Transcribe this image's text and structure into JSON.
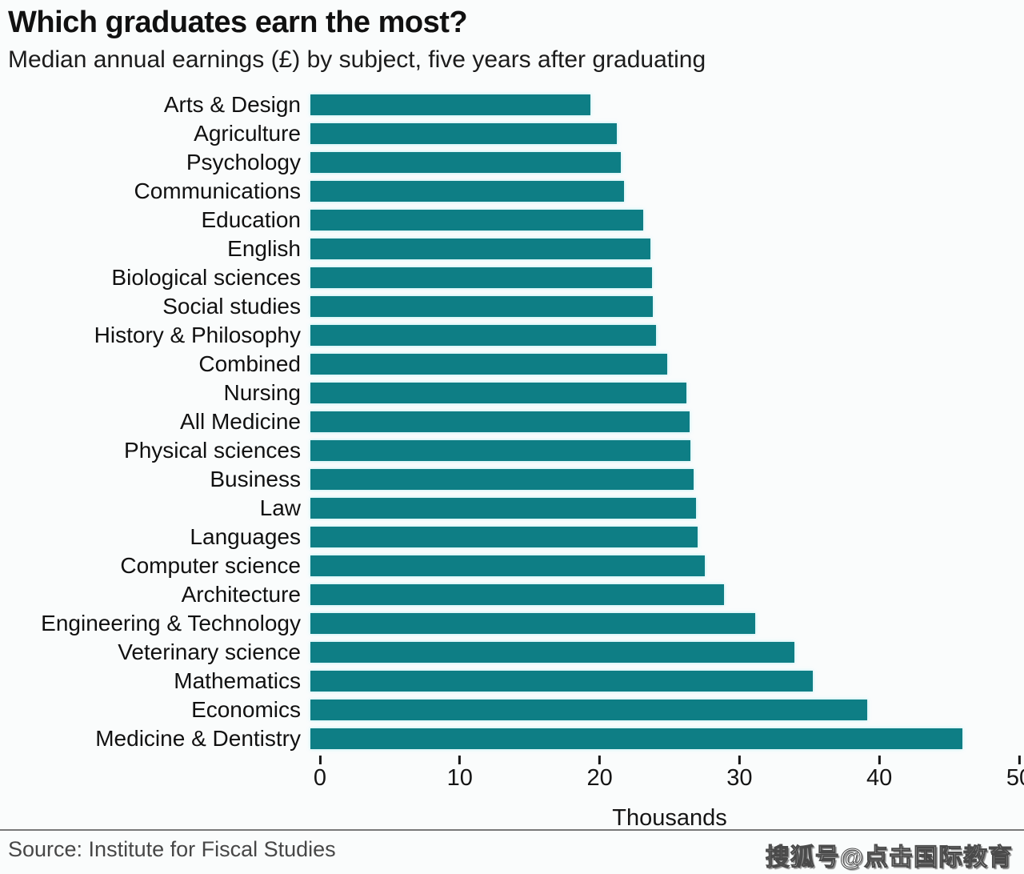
{
  "title": "Which graduates earn the most?",
  "subtitle": "Median annual earnings (£) by subject, five years after graduating",
  "source": "Source: Institute for Fiscal Studies",
  "watermark": "搜狐号@点击国际教育",
  "chart_data": {
    "type": "bar",
    "orientation": "horizontal",
    "title": "Which graduates earn the most?",
    "subtitle": "Median annual earnings (£) by subject, five years after graduating",
    "xlabel": "Thousands",
    "ylabel": "",
    "xlim": [
      0,
      50
    ],
    "xticks": [
      0,
      10,
      20,
      30,
      40,
      50
    ],
    "grid": false,
    "legend": false,
    "bar_color": "#0e7e85",
    "units": "thousands £ per year",
    "categories": [
      "Arts & Design",
      "Agriculture",
      "Psychology",
      "Communications",
      "Education",
      "English",
      "Biological sciences",
      "Social studies",
      "History & Philosophy",
      "Combined",
      "Nursing",
      "All Medicine",
      "Physical sciences",
      "Business",
      "Law",
      "Languages",
      "Computer science",
      "Architecture",
      "Engineering & Technology",
      "Veterinary science",
      "Mathematics",
      "Economics",
      "Medicine & Dentistry"
    ],
    "values": [
      20.0,
      21.9,
      22.2,
      22.4,
      23.8,
      24.3,
      24.4,
      24.5,
      24.7,
      25.5,
      26.9,
      27.1,
      27.2,
      27.4,
      27.6,
      27.7,
      28.2,
      29.6,
      31.8,
      34.6,
      35.9,
      39.8,
      46.6
    ]
  }
}
